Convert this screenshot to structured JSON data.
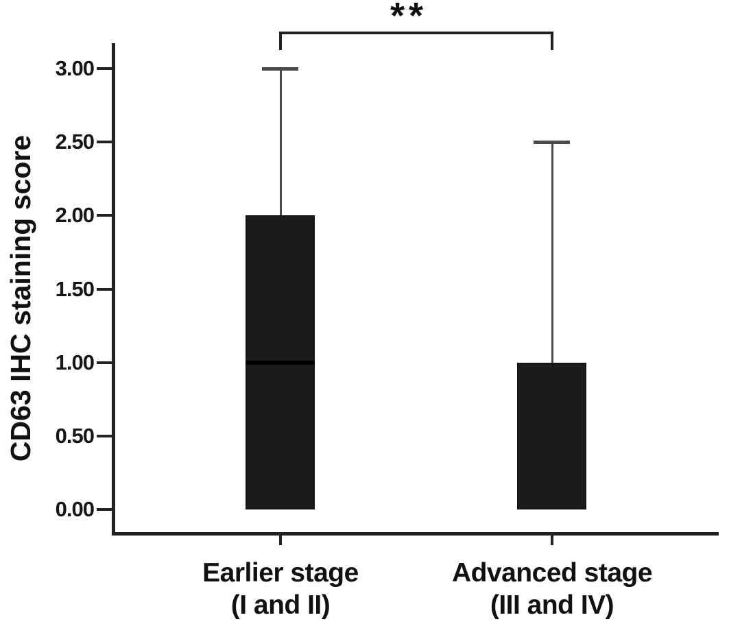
{
  "chart_data": {
    "type": "boxplot",
    "title": "",
    "ylabel": "CD63 IHC staining score",
    "xlabel": "",
    "ylim": [
      0,
      3.35
    ],
    "grid": false,
    "legend_position": "none",
    "yticks": [
      {
        "value": 0.0,
        "label": "0.00"
      },
      {
        "value": 0.5,
        "label": "0.50"
      },
      {
        "value": 1.0,
        "label": "1.00"
      },
      {
        "value": 1.5,
        "label": "1.50"
      },
      {
        "value": 2.0,
        "label": "2.00"
      },
      {
        "value": 2.5,
        "label": "2.50"
      },
      {
        "value": 3.0,
        "label": "3.00"
      }
    ],
    "categories": [
      "Earlier stage (I and II)",
      "Advanced stage (III and IV)"
    ],
    "series": [
      {
        "name": "Earlier stage (I and II)",
        "label_lines": [
          "Earlier stage",
          "(I and II)"
        ],
        "min": 0.0,
        "q1": 0.0,
        "median": 1.0,
        "q3": 2.0,
        "max": 3.0
      },
      {
        "name": "Advanced stage (III and IV)",
        "label_lines": [
          "Advanced stage",
          "(III and IV)"
        ],
        "min": 0.0,
        "q1": 0.0,
        "median": 0.0,
        "q3": 1.0,
        "max": 2.5
      }
    ],
    "significance": {
      "label": "**",
      "between": [
        0,
        1
      ]
    },
    "colors": {
      "background": "#ffffff",
      "box_fill": "#1b1b1b",
      "box_border": "#141414",
      "median": "#000000",
      "axis": "#222222",
      "whisker": "#4a4a4a",
      "text": "#111111"
    }
  }
}
